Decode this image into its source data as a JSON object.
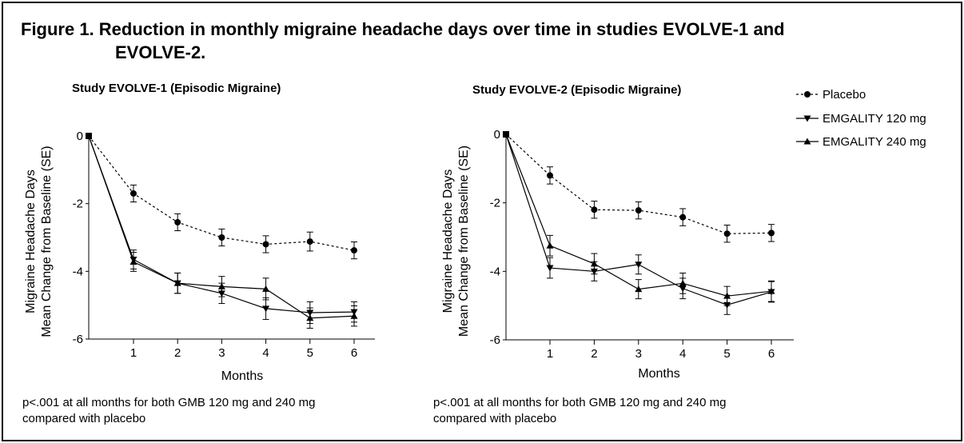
{
  "figure": {
    "title_line1": "Figure 1. Reduction in monthly migraine headache days over time in studies EVOLVE-1 and",
    "title_line2": "EVOLVE-2."
  },
  "notes": {
    "left_line1": "p<.001 at all months for both GMB 120 mg and 240 mg",
    "left_line2": "compared with placebo",
    "right_line1": "p<.001 at all months for both GMB 120 mg and 240 mg",
    "right_line2": "compared with placebo"
  },
  "legend": {
    "placebo": "Placebo",
    "emg120": "EMGALITY 120 mg",
    "emg240": "EMGALITY 240 mg"
  },
  "chart_data": [
    {
      "type": "line",
      "title": "Study EVOLVE-1 (Episodic Migraine)",
      "xlabel": "Months",
      "ylabel_line1": "Migraine Headache Days",
      "ylabel_line2": "Mean Change from Baseline (SE)",
      "x": [
        0,
        1,
        2,
        3,
        4,
        5,
        6
      ],
      "xticks": [
        "1",
        "2",
        "3",
        "4",
        "5",
        "6"
      ],
      "yticks": [
        "0",
        "-2",
        "-4",
        "-6"
      ],
      "ylim": [
        -6,
        0
      ],
      "series": [
        {
          "name": "Placebo",
          "marker": "circle",
          "dashed": true,
          "values": [
            0,
            -1.7,
            -2.55,
            -3.0,
            -3.2,
            -3.12,
            -3.38
          ],
          "errors": [
            0,
            0.25,
            0.25,
            0.25,
            0.25,
            0.28,
            0.25
          ]
        },
        {
          "name": "EMGALITY 120 mg",
          "marker": "triangle-down",
          "dashed": false,
          "values": [
            0,
            -3.65,
            -4.35,
            -4.65,
            -5.1,
            -5.22,
            -5.2
          ],
          "errors": [
            0,
            0.28,
            0.3,
            0.3,
            0.32,
            0.32,
            0.3
          ]
        },
        {
          "name": "EMGALITY 240 mg",
          "marker": "triangle-up",
          "dashed": false,
          "values": [
            0,
            -3.72,
            -4.35,
            -4.45,
            -4.52,
            -5.38,
            -5.32
          ],
          "errors": [
            0,
            0.28,
            0.3,
            0.3,
            0.32,
            0.3,
            0.3
          ]
        }
      ]
    },
    {
      "type": "line",
      "title": "Study EVOLVE-2 (Episodic Migraine)",
      "xlabel": "Months",
      "ylabel_line1": "Migraine Headache Days",
      "ylabel_line2": "Mean Change from Baseline (SE)",
      "x": [
        0,
        1,
        2,
        3,
        4,
        5,
        6
      ],
      "xticks": [
        "1",
        "2",
        "3",
        "4",
        "5",
        "6"
      ],
      "yticks": [
        "0",
        "-2",
        "-4",
        "-6"
      ],
      "ylim": [
        -6,
        0
      ],
      "series": [
        {
          "name": "Placebo",
          "marker": "circle",
          "dashed": true,
          "values": [
            0,
            -1.2,
            -2.2,
            -2.22,
            -2.42,
            -2.9,
            -2.88
          ],
          "errors": [
            0,
            0.25,
            0.25,
            0.25,
            0.25,
            0.25,
            0.25
          ]
        },
        {
          "name": "EMGALITY 120 mg",
          "marker": "triangle-down",
          "dashed": false,
          "values": [
            0,
            -3.9,
            -4.0,
            -3.8,
            -4.5,
            -4.98,
            -4.6
          ],
          "errors": [
            0,
            0.3,
            0.28,
            0.28,
            0.3,
            0.28,
            0.3
          ]
        },
        {
          "name": "EMGALITY 240 mg",
          "marker": "triangle-up",
          "dashed": false,
          "values": [
            0,
            -3.25,
            -3.78,
            -4.52,
            -4.35,
            -4.72,
            -4.58
          ],
          "errors": [
            0,
            0.3,
            0.3,
            0.28,
            0.3,
            0.28,
            0.3
          ]
        }
      ]
    }
  ]
}
